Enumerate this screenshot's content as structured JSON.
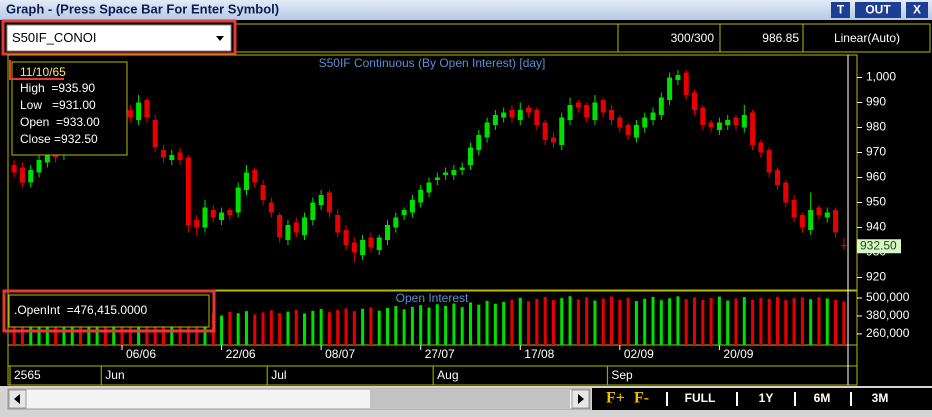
{
  "window": {
    "title": "Graph  - (Press Space Bar For Enter Symbol)",
    "buttons": [
      "T",
      "OUT",
      "X"
    ]
  },
  "toolbar": {
    "symbol": "S50IF_CONOI",
    "count": "300/300",
    "price": "986.85",
    "scale": "Linear(Auto)"
  },
  "chart_data": {
    "type": "candlestick",
    "title": "S50IF Continuous (By Open Interest) [day]",
    "up_color": "#00e000",
    "down_color": "#e80000",
    "categories": [
      null,
      null,
      null,
      null,
      null,
      null,
      null,
      null,
      null,
      null,
      null,
      null,
      null,
      "06/06",
      null,
      null,
      null,
      null,
      null,
      null,
      null,
      null,
      null,
      null,
      null,
      "22/06",
      null,
      null,
      null,
      null,
      null,
      null,
      null,
      null,
      null,
      null,
      null,
      "08/07",
      null,
      null,
      null,
      null,
      null,
      null,
      null,
      null,
      null,
      null,
      null,
      "27/07",
      null,
      null,
      null,
      null,
      null,
      null,
      null,
      null,
      null,
      null,
      null,
      "17/08",
      null,
      null,
      null,
      null,
      null,
      null,
      null,
      null,
      null,
      null,
      null,
      "02/09",
      null,
      null,
      null,
      null,
      null,
      null,
      null,
      null,
      null,
      null,
      null,
      "20/09",
      null,
      null,
      null,
      null,
      null,
      null,
      null,
      null,
      null,
      null,
      null,
      null,
      null,
      null,
      null
    ],
    "months": [
      "2565",
      null,
      null,
      null,
      null,
      null,
      null,
      null,
      null,
      null,
      null,
      "Jun",
      null,
      null,
      null,
      null,
      null,
      null,
      null,
      null,
      null,
      null,
      null,
      null,
      null,
      null,
      null,
      null,
      null,
      null,
      null,
      "Jul",
      null,
      null,
      null,
      null,
      null,
      null,
      null,
      null,
      null,
      null,
      null,
      null,
      null,
      null,
      null,
      null,
      null,
      null,
      null,
      "Aug",
      null,
      null,
      null,
      null,
      null,
      null,
      null,
      null,
      null,
      null,
      null,
      null,
      null,
      null,
      null,
      null,
      null,
      null,
      null,
      null,
      "Sep",
      null,
      null,
      null,
      null,
      null,
      null,
      null,
      null,
      null,
      null,
      null,
      null,
      null,
      null,
      null,
      null,
      null,
      null,
      null,
      null,
      null,
      null,
      null,
      null,
      null,
      null,
      null,
      null
    ],
    "open": [
      965,
      964,
      958,
      962,
      966,
      971,
      969,
      973,
      979,
      977,
      981,
      986,
      982,
      989,
      987,
      983,
      991,
      983,
      971,
      967,
      970,
      968,
      943,
      940,
      947,
      943,
      947,
      946,
      955,
      963,
      957,
      950,
      945,
      935,
      942,
      937,
      943,
      949,
      954,
      945,
      939,
      934,
      929,
      936,
      931,
      935,
      940,
      945,
      946,
      950,
      954,
      959,
      961,
      961,
      963,
      965,
      971,
      976,
      981,
      984,
      987,
      983,
      988,
      987,
      982,
      976,
      973,
      983,
      990,
      989,
      983,
      991,
      987,
      984,
      981,
      976,
      980,
      983,
      985,
      991,
      999,
      1002,
      994,
      988,
      982,
      979,
      981,
      984,
      980,
      986,
      974,
      971,
      963,
      958,
      951,
      945,
      939,
      948,
      944,
      947,
      933
    ],
    "high": [
      967,
      966,
      965,
      969,
      972,
      973,
      976,
      980,
      981,
      984,
      987,
      988,
      990,
      991,
      989,
      993,
      992,
      985,
      973,
      971,
      972,
      969,
      945,
      951,
      949,
      948,
      948,
      958,
      965,
      964,
      959,
      952,
      946,
      943,
      944,
      946,
      952,
      955,
      955,
      947,
      941,
      936,
      937,
      938,
      937,
      943,
      946,
      948,
      953,
      957,
      960,
      962,
      964,
      965,
      966,
      974,
      979,
      984,
      987,
      988,
      989,
      990,
      989,
      988,
      983,
      978,
      986,
      992,
      991,
      990,
      993,
      992,
      989,
      985,
      982,
      983,
      986,
      988,
      994,
      1002,
      1003,
      1003,
      995,
      989,
      983,
      984,
      985,
      985,
      989,
      987,
      975,
      972,
      964,
      959,
      953,
      946,
      954,
      949,
      948,
      948,
      935.9
    ],
    "low": [
      960,
      956,
      956,
      960,
      964,
      966,
      967,
      971,
      974,
      975,
      979,
      981,
      980,
      984,
      982,
      981,
      982,
      970,
      966,
      965,
      965,
      938,
      937,
      938,
      942,
      941,
      943,
      944,
      953,
      956,
      949,
      944,
      934,
      933,
      936,
      935,
      941,
      947,
      944,
      936,
      931,
      926,
      927,
      930,
      929,
      933,
      938,
      943,
      944,
      948,
      952,
      957,
      959,
      959,
      961,
      963,
      969,
      974,
      979,
      982,
      982,
      981,
      984,
      979,
      973,
      972,
      971,
      981,
      986,
      982,
      981,
      984,
      981,
      978,
      975,
      974,
      978,
      981,
      983,
      989,
      997,
      991,
      985,
      979,
      978,
      977,
      979,
      979,
      978,
      971,
      968,
      960,
      955,
      948,
      942,
      938,
      937,
      943,
      942,
      936,
      931
    ],
    "close": [
      962,
      958,
      963,
      967,
      970,
      968,
      974,
      978,
      976,
      982,
      985,
      983,
      988,
      986,
      984,
      990,
      984,
      972,
      968,
      969,
      967,
      941,
      940,
      948,
      944,
      946,
      945,
      956,
      962,
      958,
      951,
      946,
      936,
      941,
      938,
      944,
      950,
      953,
      946,
      938,
      933,
      930,
      935,
      932,
      936,
      941,
      944,
      947,
      951,
      955,
      958,
      960,
      962,
      963,
      964,
      972,
      977,
      982,
      985,
      986,
      984,
      987,
      986,
      981,
      975,
      974,
      984,
      989,
      988,
      984,
      990,
      986,
      983,
      980,
      977,
      981,
      984,
      986,
      992,
      1000,
      1001,
      993,
      987,
      981,
      980,
      982,
      983,
      981,
      985,
      973,
      970,
      962,
      957,
      950,
      944,
      940,
      947,
      945,
      946,
      938,
      932.5
    ],
    "last_label": "932.50",
    "ylim": [
      915,
      1009
    ],
    "yticks": [
      920,
      930,
      940,
      950,
      960,
      970,
      980,
      990,
      {
        "value": 1000,
        "label": "1,000"
      }
    ],
    "info_box": {
      "date": "11/10/65",
      "lines": [
        "High  =935.90",
        "Low   =931.00",
        "Open  =933.00",
        "Close =932.50"
      ]
    },
    "volume": {
      "title": "Open Interest",
      "info": ".OpenInt  =476,415.0000",
      "values": [
        352000,
        348000,
        356000,
        344000,
        360000,
        351000,
        366000,
        358000,
        347000,
        362000,
        370000,
        355000,
        349000,
        364000,
        372000,
        361000,
        353000,
        368000,
        374000,
        359000,
        366000,
        392000,
        388000,
        401000,
        395000,
        383000,
        406000,
        398000,
        412000,
        390000,
        404000,
        418000,
        399000,
        409000,
        421000,
        397000,
        414000,
        426000,
        405000,
        419000,
        431000,
        412000,
        428000,
        437000,
        415000,
        433000,
        446000,
        424000,
        441000,
        452000,
        436000,
        458000,
        447000,
        463000,
        439000,
        470000,
        455000,
        481000,
        462000,
        474000,
        489000,
        501000,
        478000,
        494000,
        508000,
        486000,
        499000,
        512000,
        490000,
        505000,
        483000,
        497000,
        510000,
        488000,
        502000,
        479000,
        495000,
        507000,
        485000,
        498000,
        511000,
        492000,
        504000,
        487000,
        500000,
        509000,
        483000,
        496000,
        506000,
        489000,
        501000,
        494000,
        508000,
        486000,
        499000,
        503000,
        491000,
        505000,
        497000,
        488000,
        476415
      ],
      "ylim": [
        186000,
        540000
      ],
      "yticks": [
        {
          "value": 260000,
          "label": "260,000"
        },
        {
          "value": 380000,
          "label": "380,000"
        },
        {
          "value": 500000,
          "label": "500,000"
        }
      ]
    }
  },
  "footer": {
    "buttons": [
      "F+",
      "F-",
      "FULL",
      "1Y",
      "6M",
      "3M"
    ]
  }
}
